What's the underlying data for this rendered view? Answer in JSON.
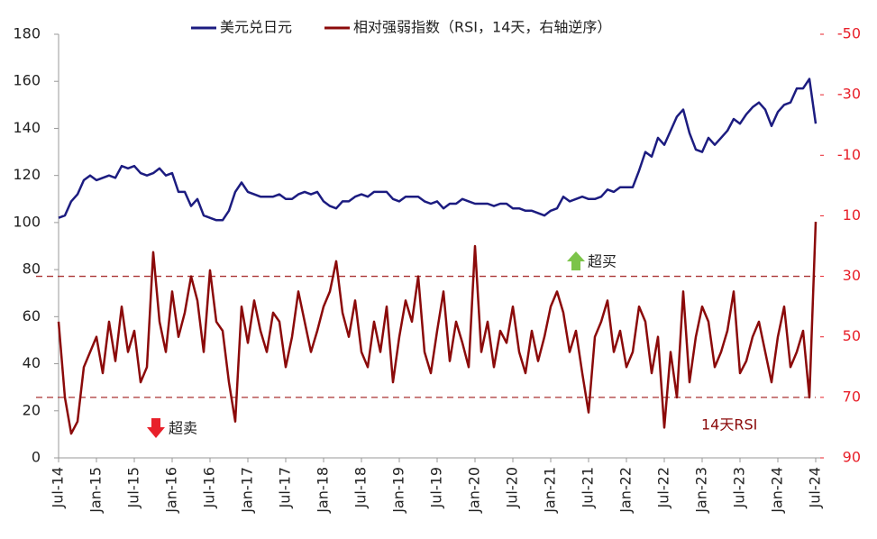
{
  "chart_data": {
    "type": "line",
    "categories": [
      "Jul-14",
      null,
      null,
      null,
      null,
      null,
      "Jan-15",
      null,
      null,
      null,
      null,
      null,
      "Jul-15",
      null,
      null,
      null,
      null,
      null,
      "Jan-16",
      null,
      null,
      null,
      null,
      null,
      "Jul-16",
      null,
      null,
      null,
      null,
      null,
      "Jan-17",
      null,
      null,
      null,
      null,
      null,
      "Jul-17",
      null,
      null,
      null,
      null,
      null,
      "Jan-18",
      null,
      null,
      null,
      null,
      null,
      "Jul-18",
      null,
      null,
      null,
      null,
      null,
      "Jan-19",
      null,
      null,
      null,
      null,
      null,
      "Jul-19",
      null,
      null,
      null,
      null,
      null,
      "Jan-20",
      null,
      null,
      null,
      null,
      null,
      "Jul-20",
      null,
      null,
      null,
      null,
      null,
      "Jan-21",
      null,
      null,
      null,
      null,
      null,
      "Jul-21",
      null,
      null,
      null,
      null,
      null,
      "Jan-22",
      null,
      null,
      null,
      null,
      null,
      "Jul-22",
      null,
      null,
      null,
      null,
      null,
      "Jan-23",
      null,
      null,
      null,
      null,
      null,
      "Jul-23",
      null,
      null,
      null,
      null,
      null,
      "Jan-24",
      null,
      null,
      null,
      null,
      null,
      "Jul-24"
    ],
    "series": [
      {
        "name": "美元兑日元",
        "color": "#1c1c80",
        "values": [
          102,
          103,
          109,
          112,
          118,
          120,
          118,
          119,
          120,
          119,
          124,
          123,
          124,
          121,
          120,
          121,
          123,
          120,
          121,
          113,
          113,
          107,
          110,
          103,
          102,
          101,
          101,
          105,
          113,
          117,
          113,
          112,
          111,
          111,
          111,
          112,
          110,
          110,
          112,
          113,
          112,
          113,
          109,
          107,
          106,
          109,
          109,
          111,
          112,
          111,
          113,
          113,
          113,
          110,
          109,
          111,
          111,
          111,
          109,
          108,
          109,
          106,
          108,
          108,
          110,
          109,
          108,
          108,
          108,
          107,
          108,
          108,
          106,
          106,
          105,
          105,
          104,
          103,
          105,
          106,
          111,
          109,
          110,
          111,
          110,
          110,
          111,
          114,
          113,
          115,
          115,
          115,
          122,
          130,
          128,
          136,
          133,
          139,
          145,
          148,
          138,
          131,
          130,
          136,
          133,
          136,
          139,
          144,
          142,
          146,
          149,
          151,
          148,
          141,
          147,
          150,
          151,
          157,
          157,
          161,
          142
        ]
      },
      {
        "name": "相对强弱指数（RSI，14天，右轴逆序）",
        "color": "#8b0a0a",
        "axis": "y2",
        "values": [
          45,
          70,
          82,
          78,
          60,
          55,
          50,
          62,
          45,
          58,
          40,
          55,
          48,
          65,
          60,
          22,
          45,
          55,
          35,
          50,
          42,
          30,
          38,
          55,
          28,
          45,
          48,
          65,
          78,
          40,
          52,
          38,
          48,
          55,
          42,
          45,
          60,
          50,
          35,
          45,
          55,
          48,
          40,
          35,
          25,
          42,
          50,
          38,
          55,
          60,
          45,
          55,
          40,
          65,
          50,
          38,
          45,
          30,
          55,
          62,
          48,
          35,
          58,
          45,
          52,
          60,
          20,
          55,
          45,
          60,
          48,
          52,
          40,
          55,
          62,
          48,
          58,
          50,
          40,
          35,
          42,
          55,
          48,
          62,
          75,
          50,
          45,
          38,
          55,
          48,
          60,
          55,
          40,
          45,
          62,
          50,
          80,
          55,
          70,
          35,
          65,
          50,
          40,
          45,
          60,
          55,
          48,
          35,
          62,
          58,
          50,
          45,
          55,
          65,
          50,
          40,
          60,
          55,
          48,
          70,
          12
        ]
      }
    ],
    "ylim": [
      0,
      180
    ],
    "yticks": [
      0,
      20,
      40,
      60,
      80,
      100,
      120,
      140,
      160,
      180
    ],
    "y2lim": [
      90,
      -50
    ],
    "y2ticks": [
      -50,
      -30,
      -10,
      10,
      30,
      50,
      70,
      90
    ],
    "y2_color": "#e8202a",
    "reference_lines": [
      {
        "value": 30,
        "axis": "y2"
      },
      {
        "value": 70,
        "axis": "y2"
      }
    ],
    "annotations": [
      "超买",
      "超卖",
      "14天RSI"
    ]
  }
}
